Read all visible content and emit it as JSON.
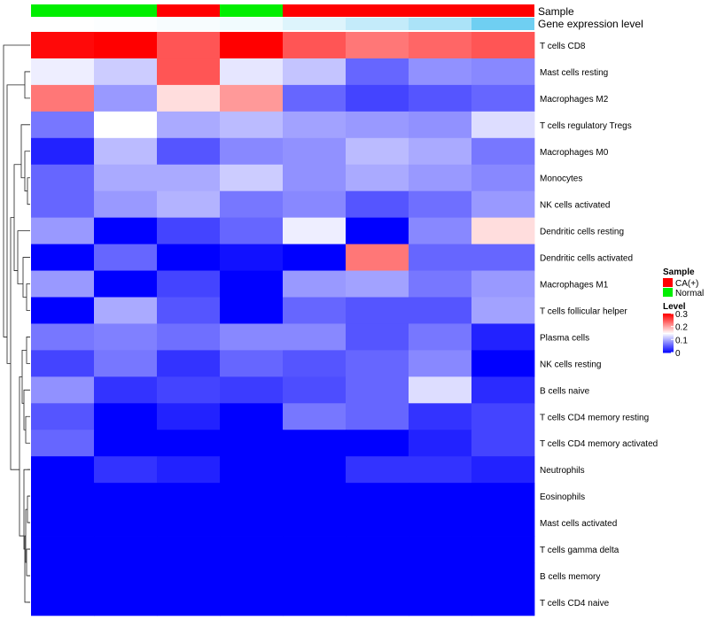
{
  "chart_data": {
    "type": "heatmap",
    "title": "",
    "annotation_rows": [
      {
        "label": "Sample",
        "values": [
          "Normal",
          "Normal",
          "CA(+)",
          "Normal",
          "CA(+)",
          "CA(+)",
          "CA(+)",
          "CA(+)"
        ]
      },
      {
        "label": "Gene expression level",
        "values": [
          0.0,
          0.02,
          0.05,
          0.08,
          0.2,
          0.35,
          0.5,
          0.85
        ]
      }
    ],
    "rows": [
      "T cells CD8",
      "Mast cells resting",
      "Macrophages M2",
      "T cells regulatory  Tregs",
      "Macrophages M0",
      "Monocytes",
      "NK cells activated",
      "Dendritic cells resting",
      "Dendritic cells activated",
      "Macrophages M1",
      "T cells follicular helper",
      "Plasma cells",
      "NK cells resting",
      "B cells naive",
      "T cells CD4 memory resting",
      "T cells CD4 memory activated",
      "Neutrophils",
      "Eosinophils",
      "Mast cells activated",
      "T cells gamma delta",
      "B cells memory",
      "T cells CD4 naive"
    ],
    "values": [
      [
        0.295,
        0.3,
        0.25,
        0.3,
        0.25,
        0.23,
        0.24,
        0.25
      ],
      [
        0.14,
        0.12,
        0.25,
        0.135,
        0.115,
        0.06,
        0.085,
        0.08
      ],
      [
        0.23,
        0.09,
        0.17,
        0.21,
        0.06,
        0.04,
        0.05,
        0.06
      ],
      [
        0.07,
        0.15,
        0.1,
        0.11,
        0.095,
        0.09,
        0.085,
        0.13
      ],
      [
        0.02,
        0.11,
        0.05,
        0.08,
        0.085,
        0.11,
        0.1,
        0.07
      ],
      [
        0.06,
        0.1,
        0.1,
        0.12,
        0.085,
        0.1,
        0.09,
        0.08
      ],
      [
        0.06,
        0.09,
        0.105,
        0.07,
        0.08,
        0.05,
        0.065,
        0.09
      ],
      [
        0.09,
        0.0,
        0.04,
        0.06,
        0.14,
        0.0,
        0.08,
        0.17
      ],
      [
        0.0,
        0.06,
        0.0,
        0.01,
        0.0,
        0.23,
        0.06,
        0.06
      ],
      [
        0.09,
        0.0,
        0.04,
        0.0,
        0.09,
        0.095,
        0.07,
        0.09
      ],
      [
        0.0,
        0.1,
        0.05,
        0.0,
        0.06,
        0.05,
        0.05,
        0.095
      ],
      [
        0.07,
        0.075,
        0.065,
        0.08,
        0.08,
        0.05,
        0.07,
        0.02
      ],
      [
        0.04,
        0.07,
        0.03,
        0.06,
        0.05,
        0.06,
        0.08,
        0.0
      ],
      [
        0.085,
        0.03,
        0.04,
        0.035,
        0.045,
        0.06,
        0.13,
        0.025
      ],
      [
        0.05,
        0.0,
        0.02,
        0.0,
        0.07,
        0.06,
        0.03,
        0.04
      ],
      [
        0.06,
        0.0,
        0.0,
        0.0,
        0.0,
        0.0,
        0.02,
        0.04
      ],
      [
        0.0,
        0.03,
        0.02,
        0.0,
        0.0,
        0.03,
        0.03,
        0.02
      ],
      [
        0.0,
        0.0,
        0.0,
        0.0,
        0.0,
        0.0,
        0.0,
        0.0
      ],
      [
        0.0,
        0.0,
        0.0,
        0.0,
        0.0,
        0.0,
        0.0,
        0.0
      ],
      [
        0.0,
        0.0,
        0.0,
        0.0,
        0.0,
        0.0,
        0.0,
        0.0
      ],
      [
        0.0,
        0.0,
        0.0,
        0.0,
        0.0,
        0.0,
        0.0,
        0.0
      ],
      [
        0.0,
        0.0,
        0.0,
        0.0,
        0.0,
        0.0,
        0.0,
        0.0
      ]
    ],
    "color_scale": {
      "min": 0,
      "max": 0.3,
      "low_color": "#0000ff",
      "mid_color": "#ffffff",
      "high_color": "#ff0000"
    },
    "legend": {
      "placement": "right",
      "sample": {
        "title": "Sample",
        "entries": [
          {
            "label": "CA(+)",
            "color": "#ff0000"
          },
          {
            "label": "Normal",
            "color": "#00ee00"
          }
        ]
      },
      "level": {
        "title": "Level",
        "ticks": [
          0.3,
          0.2,
          0.1,
          0
        ],
        "tick_labels": [
          "0.3",
          "0.2",
          "0.1",
          "0"
        ]
      }
    },
    "gene_expression_colors": {
      "low": "#ffffff",
      "high": "#56c7f0"
    },
    "dendrogram": {
      "side": "left",
      "clustered_rows": true
    }
  }
}
